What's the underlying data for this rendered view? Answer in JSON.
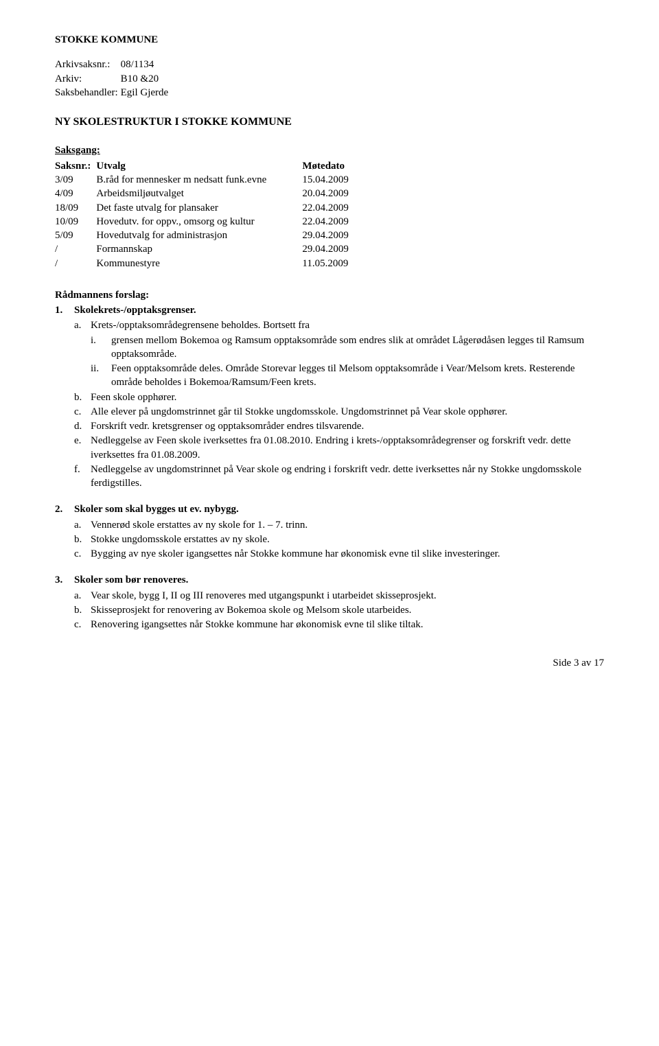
{
  "header": {
    "municipality": "STOKKE KOMMUNE",
    "meta": [
      {
        "label": "Arkivsaksnr.:",
        "value": "08/1134"
      },
      {
        "label": "Arkiv:",
        "value": "B10 &20"
      },
      {
        "label": "Saksbehandler:",
        "value": "Egil Gjerde"
      }
    ]
  },
  "doc_title": "NY SKOLESTRUKTUR I STOKKE KOMMUNE",
  "saksgang": {
    "title": "Saksgang:",
    "headers": [
      "Saksnr.:",
      "Utvalg",
      "Møtedato"
    ],
    "rows": [
      {
        "nr": "3/09",
        "utvalg": "B.råd for mennesker m nedsatt funk.evne",
        "dato": "15.04.2009"
      },
      {
        "nr": "4/09",
        "utvalg": "Arbeidsmiljøutvalget",
        "dato": "20.04.2009"
      },
      {
        "nr": "18/09",
        "utvalg": "Det faste utvalg for plansaker",
        "dato": "22.04.2009"
      },
      {
        "nr": "10/09",
        "utvalg": "Hovedutv. for oppv., omsorg og kultur",
        "dato": "22.04.2009"
      },
      {
        "nr": "5/09",
        "utvalg": "Hovedutvalg for administrasjon",
        "dato": "29.04.2009"
      },
      {
        "nr": "/",
        "utvalg": "Formannskap",
        "dato": "29.04.2009"
      },
      {
        "nr": "/",
        "utvalg": "Kommunestyre",
        "dato": "11.05.2009"
      }
    ]
  },
  "forslag": {
    "title": "Rådmannens forslag:",
    "items": [
      {
        "title": "Skolekrets-/opptaksgrenser.",
        "alpha": [
          {
            "text": "Krets-/opptaksområdegrensene beholdes. Bortsett fra",
            "roman": [
              "grensen mellom Bokemoa og Ramsum opptaksområde som endres slik at området Lågerødåsen legges til Ramsum opptaksområde.",
              "Feen opptaksområde deles. Område Storevar legges til Melsom opptaksområde i Vear/Melsom krets. Resterende område beholdes i Bokemoa/Ramsum/Feen krets."
            ]
          },
          {
            "text": "Feen skole opphører."
          },
          {
            "text": "Alle elever på ungdomstrinnet går til Stokke ungdomsskole. Ungdomstrinnet på Vear skole opphører."
          },
          {
            "text": "Forskrift vedr. kretsgrenser og opptaksområder endres tilsvarende."
          },
          {
            "text": "Nedleggelse av Feen skole iverksettes fra 01.08.2010. Endring i krets-/opptaksområdegrenser og forskrift vedr. dette iverksettes fra 01.08.2009."
          },
          {
            "text": "Nedleggelse av ungdomstrinnet på Vear skole og endring i forskrift vedr. dette iverksettes når ny Stokke ungdomsskole ferdigstilles."
          }
        ]
      },
      {
        "title": "Skoler som skal bygges ut ev. nybygg.",
        "alpha": [
          {
            "text": "Vennerød skole erstattes av ny skole for 1. – 7. trinn."
          },
          {
            "text": "Stokke ungdomsskole erstattes av ny skole."
          },
          {
            "text": "Bygging av nye skoler igangsettes når Stokke kommune har økonomisk evne til slike investeringer."
          }
        ]
      },
      {
        "title": "Skoler som bør renoveres.",
        "alpha": [
          {
            "text": "Vear skole, bygg I, II og III renoveres med utgangspunkt i utarbeidet skisseprosjekt."
          },
          {
            "text": "Skisseprosjekt for renovering av Bokemoa skole og Melsom skole utarbeides."
          },
          {
            "text": "Renovering igangsettes når Stokke kommune har økonomisk evne til slike tiltak."
          }
        ]
      }
    ]
  },
  "footer": {
    "page_label": "Side 3 av 17"
  },
  "alpha_markers": [
    "a.",
    "b.",
    "c.",
    "d.",
    "e.",
    "f."
  ],
  "roman_markers": [
    "i.",
    "ii."
  ]
}
